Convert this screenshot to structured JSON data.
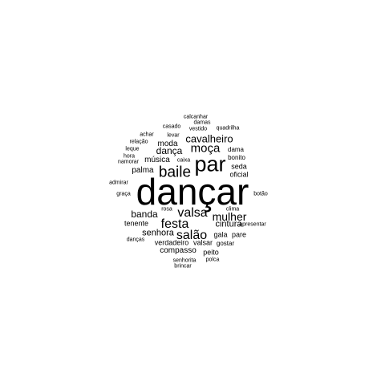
{
  "text_color": "#000000",
  "background_color": "#ffffff",
  "words": [
    {
      "text": "dançar"
    },
    {
      "text": "par"
    },
    {
      "text": "baile"
    },
    {
      "text": "valsa"
    },
    {
      "text": "festa"
    },
    {
      "text": "salão"
    },
    {
      "text": "moça"
    },
    {
      "text": "mulher"
    },
    {
      "text": "cavalheiro"
    },
    {
      "text": "dança"
    },
    {
      "text": "banda"
    },
    {
      "text": "cintura"
    },
    {
      "text": "senhora"
    },
    {
      "text": "moda"
    },
    {
      "text": "música"
    },
    {
      "text": "palma"
    },
    {
      "text": "seda"
    },
    {
      "text": "oficial"
    },
    {
      "text": "compasso"
    },
    {
      "text": "peito"
    },
    {
      "text": "tenente"
    },
    {
      "text": "gala"
    },
    {
      "text": "pare"
    },
    {
      "text": "verdadeiro"
    },
    {
      "text": "valsar"
    },
    {
      "text": "gostar"
    },
    {
      "text": "dama"
    },
    {
      "text": "bonito"
    },
    {
      "text": "caixa"
    },
    {
      "text": "levar"
    },
    {
      "text": "casado"
    },
    {
      "text": "vestido"
    },
    {
      "text": "quadrilha"
    },
    {
      "text": "calcanhar"
    },
    {
      "text": "damas"
    },
    {
      "text": "achar"
    },
    {
      "text": "relação"
    },
    {
      "text": "leque"
    },
    {
      "text": "hora"
    },
    {
      "text": "namorar"
    },
    {
      "text": "admirar"
    },
    {
      "text": "graça"
    },
    {
      "text": "botão"
    },
    {
      "text": "rosa"
    },
    {
      "text": "clima"
    },
    {
      "text": "apresentar"
    },
    {
      "text": "danças"
    },
    {
      "text": "senhorita"
    },
    {
      "text": "polca"
    },
    {
      "text": "brincar"
    }
  ]
}
